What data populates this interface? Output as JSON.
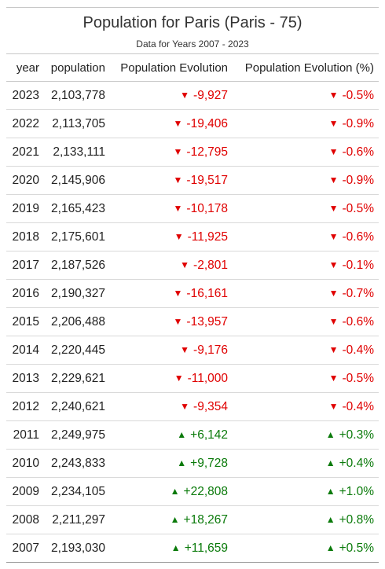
{
  "chart_data": {
    "type": "table",
    "title": "Population for Paris (Paris - 75)",
    "subtitle": "Data for Years 2007 - 2023",
    "columns": [
      "year",
      "population",
      "Population Evolution",
      "Population Evolution (%)"
    ],
    "colors": {
      "negative": "#e00000",
      "positive": "#0a7a0a"
    },
    "icons": {
      "negative": "▼",
      "positive": "▲"
    },
    "rows": [
      {
        "year": "2023",
        "population": "2,103,778",
        "evolution": "-9,927",
        "evolution_pct": "-0.5%",
        "trend": "down"
      },
      {
        "year": "2022",
        "population": "2,113,705",
        "evolution": "-19,406",
        "evolution_pct": "-0.9%",
        "trend": "down"
      },
      {
        "year": "2021",
        "population": "2,133,111",
        "evolution": "-12,795",
        "evolution_pct": "-0.6%",
        "trend": "down"
      },
      {
        "year": "2020",
        "population": "2,145,906",
        "evolution": "-19,517",
        "evolution_pct": "-0.9%",
        "trend": "down"
      },
      {
        "year": "2019",
        "population": "2,165,423",
        "evolution": "-10,178",
        "evolution_pct": "-0.5%",
        "trend": "down"
      },
      {
        "year": "2018",
        "population": "2,175,601",
        "evolution": "-11,925",
        "evolution_pct": "-0.6%",
        "trend": "down"
      },
      {
        "year": "2017",
        "population": "2,187,526",
        "evolution": "-2,801",
        "evolution_pct": "-0.1%",
        "trend": "down"
      },
      {
        "year": "2016",
        "population": "2,190,327",
        "evolution": "-16,161",
        "evolution_pct": "-0.7%",
        "trend": "down"
      },
      {
        "year": "2015",
        "population": "2,206,488",
        "evolution": "-13,957",
        "evolution_pct": "-0.6%",
        "trend": "down"
      },
      {
        "year": "2014",
        "population": "2,220,445",
        "evolution": "-9,176",
        "evolution_pct": "-0.4%",
        "trend": "down"
      },
      {
        "year": "2013",
        "population": "2,229,621",
        "evolution": "-11,000",
        "evolution_pct": "-0.5%",
        "trend": "down"
      },
      {
        "year": "2012",
        "population": "2,240,621",
        "evolution": "-9,354",
        "evolution_pct": "-0.4%",
        "trend": "down"
      },
      {
        "year": "2011",
        "population": "2,249,975",
        "evolution": "+6,142",
        "evolution_pct": "+0.3%",
        "trend": "up"
      },
      {
        "year": "2010",
        "population": "2,243,833",
        "evolution": "+9,728",
        "evolution_pct": "+0.4%",
        "trend": "up"
      },
      {
        "year": "2009",
        "population": "2,234,105",
        "evolution": "+22,808",
        "evolution_pct": "+1.0%",
        "trend": "up"
      },
      {
        "year": "2008",
        "population": "2,211,297",
        "evolution": "+18,267",
        "evolution_pct": "+0.8%",
        "trend": "up"
      },
      {
        "year": "2007",
        "population": "2,193,030",
        "evolution": "+11,659",
        "evolution_pct": "+0.5%",
        "trend": "up"
      }
    ]
  }
}
